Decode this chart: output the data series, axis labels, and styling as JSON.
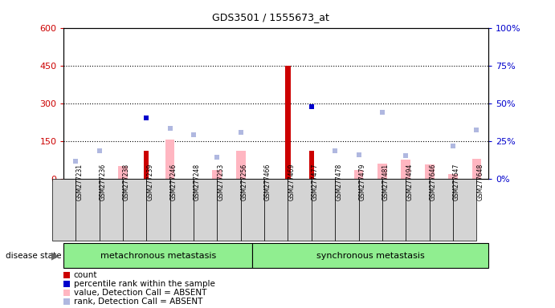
{
  "title": "GDS3501 / 1555673_at",
  "samples": [
    "GSM277231",
    "GSM277236",
    "GSM277238",
    "GSM277239",
    "GSM277246",
    "GSM277248",
    "GSM277253",
    "GSM277256",
    "GSM277466",
    "GSM277469",
    "GSM277477",
    "GSM277478",
    "GSM277479",
    "GSM277481",
    "GSM277494",
    "GSM277646",
    "GSM277647",
    "GSM277648"
  ],
  "groups": [
    {
      "name": "metachronous metastasis",
      "start": 0,
      "end": 8
    },
    {
      "name": "synchronous metastasis",
      "start": 8,
      "end": 18
    }
  ],
  "red_bars": [
    null,
    null,
    null,
    110,
    null,
    null,
    null,
    null,
    null,
    450,
    110,
    null,
    null,
    null,
    null,
    null,
    null,
    null
  ],
  "blue_squares": [
    null,
    null,
    null,
    240,
    null,
    null,
    null,
    null,
    null,
    null,
    285,
    null,
    null,
    null,
    null,
    null,
    null,
    null
  ],
  "pink_bars": [
    null,
    null,
    50,
    null,
    155,
    null,
    35,
    110,
    null,
    null,
    null,
    null,
    35,
    60,
    75,
    55,
    18,
    80
  ],
  "lavender_squares": [
    70,
    110,
    null,
    null,
    200,
    175,
    85,
    185,
    null,
    null,
    null,
    110,
    95,
    265,
    90,
    null,
    130,
    195
  ],
  "left_ylim": [
    0,
    600
  ],
  "left_yticks": [
    0,
    150,
    300,
    450,
    600
  ],
  "right_ylim": [
    0,
    100
  ],
  "right_yticks": [
    0,
    25,
    50,
    75,
    100
  ],
  "left_color": "#cc0000",
  "right_color": "#0000cc",
  "plot_bg": "#ffffff",
  "outer_bg": "#ffffff",
  "gray_tick_bg": "#d4d4d4",
  "group_bg": "#90ee90",
  "legend_items": [
    {
      "label": "count",
      "color": "#cc0000"
    },
    {
      "label": "percentile rank within the sample",
      "color": "#0000cc"
    },
    {
      "label": "value, Detection Call = ABSENT",
      "color": "#ffb6c1"
    },
    {
      "label": "rank, Detection Call = ABSENT",
      "color": "#b0b8e0"
    }
  ],
  "hlines": [
    150,
    300,
    450
  ],
  "blue_sq_raw": [
    null,
    null,
    null,
    240,
    null,
    null,
    null,
    null,
    null,
    null,
    285,
    null,
    null,
    null,
    null,
    null,
    null,
    null
  ],
  "lav_sq_raw": [
    70,
    110,
    null,
    null,
    200,
    175,
    85,
    185,
    null,
    null,
    null,
    110,
    95,
    265,
    90,
    null,
    130,
    195
  ]
}
